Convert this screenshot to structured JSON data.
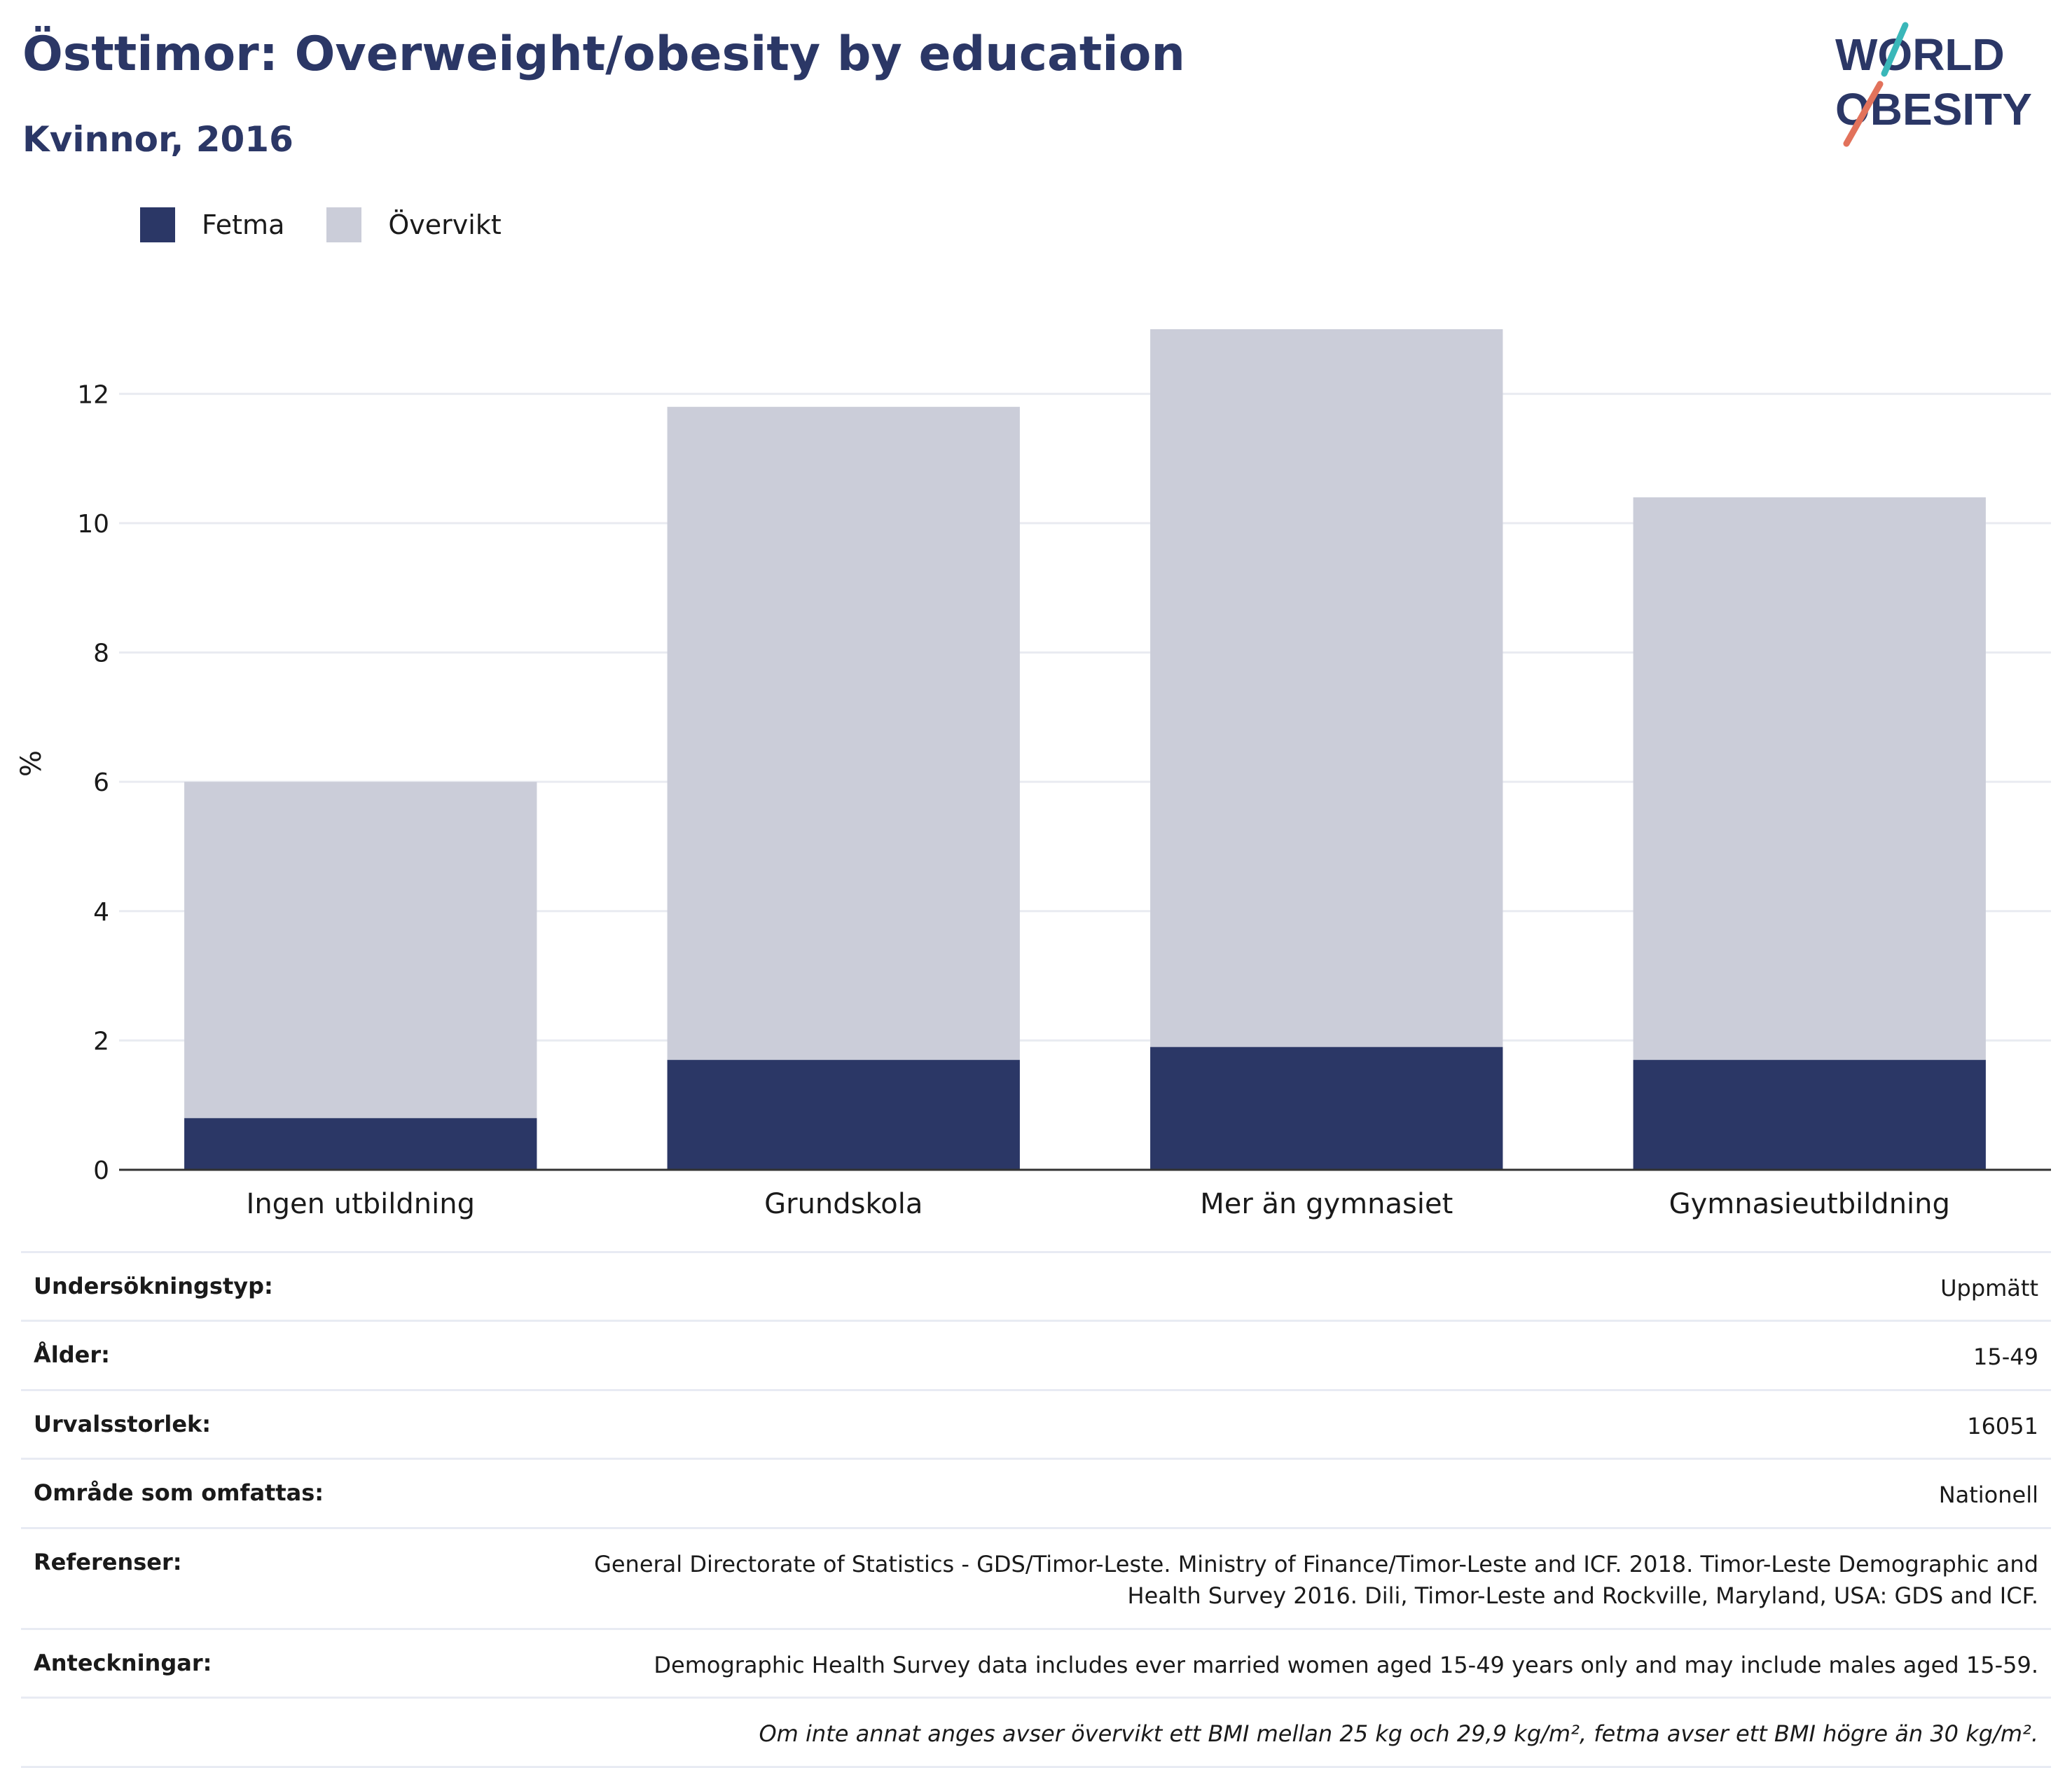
{
  "header": {
    "title": "Östtimor: Overweight/obesity by education",
    "subtitle": "Kvinnor, 2016"
  },
  "logo": {
    "line1": "WORLD",
    "line2": "OBESITY"
  },
  "chart_data": {
    "type": "bar",
    "stacked": true,
    "categories": [
      "Ingen utbildning",
      "Grundskola",
      "Mer än gymnasiet",
      "Gymnasieutbildning"
    ],
    "series": [
      {
        "name": "Fetma",
        "values": [
          0.8,
          1.7,
          1.9,
          1.7
        ],
        "color": "#2b3766"
      },
      {
        "name": "Övervikt",
        "values": [
          5.2,
          10.1,
          11.1,
          8.7
        ],
        "color": "#cbcdd9"
      }
    ],
    "ylabel": "%",
    "ylim": [
      0,
      13
    ],
    "yticks": [
      0,
      2,
      4,
      6,
      8,
      10,
      12
    ],
    "grid": true,
    "legend": "top-left"
  },
  "info": [
    {
      "key": "Undersökningstyp:",
      "value": "Uppmätt"
    },
    {
      "key": "Ålder:",
      "value": "15-49"
    },
    {
      "key": "Urvalsstorlek:",
      "value": "16051"
    },
    {
      "key": "Område som omfattas:",
      "value": "Nationell"
    },
    {
      "key": "Referenser:",
      "value_lines": [
        "General Directorate of Statistics - GDS/Timor-Leste. Ministry of Finance/Timor-Leste and ICF. 2018. Timor-Leste Demographic and",
        "Health Survey 2016. Dili, Timor-Leste and Rockville, Maryland, USA: GDS and ICF."
      ]
    },
    {
      "key": "Anteckningar:",
      "value": "Demographic Health Survey data includes ever married women aged 15-49 years only and may include males aged 15-59."
    }
  ],
  "footnote": "Om inte annat anges avser övervikt ett BMI mellan 25 kg och 29,9 kg/m², fetma avser ett BMI högre än 30 kg/m²."
}
